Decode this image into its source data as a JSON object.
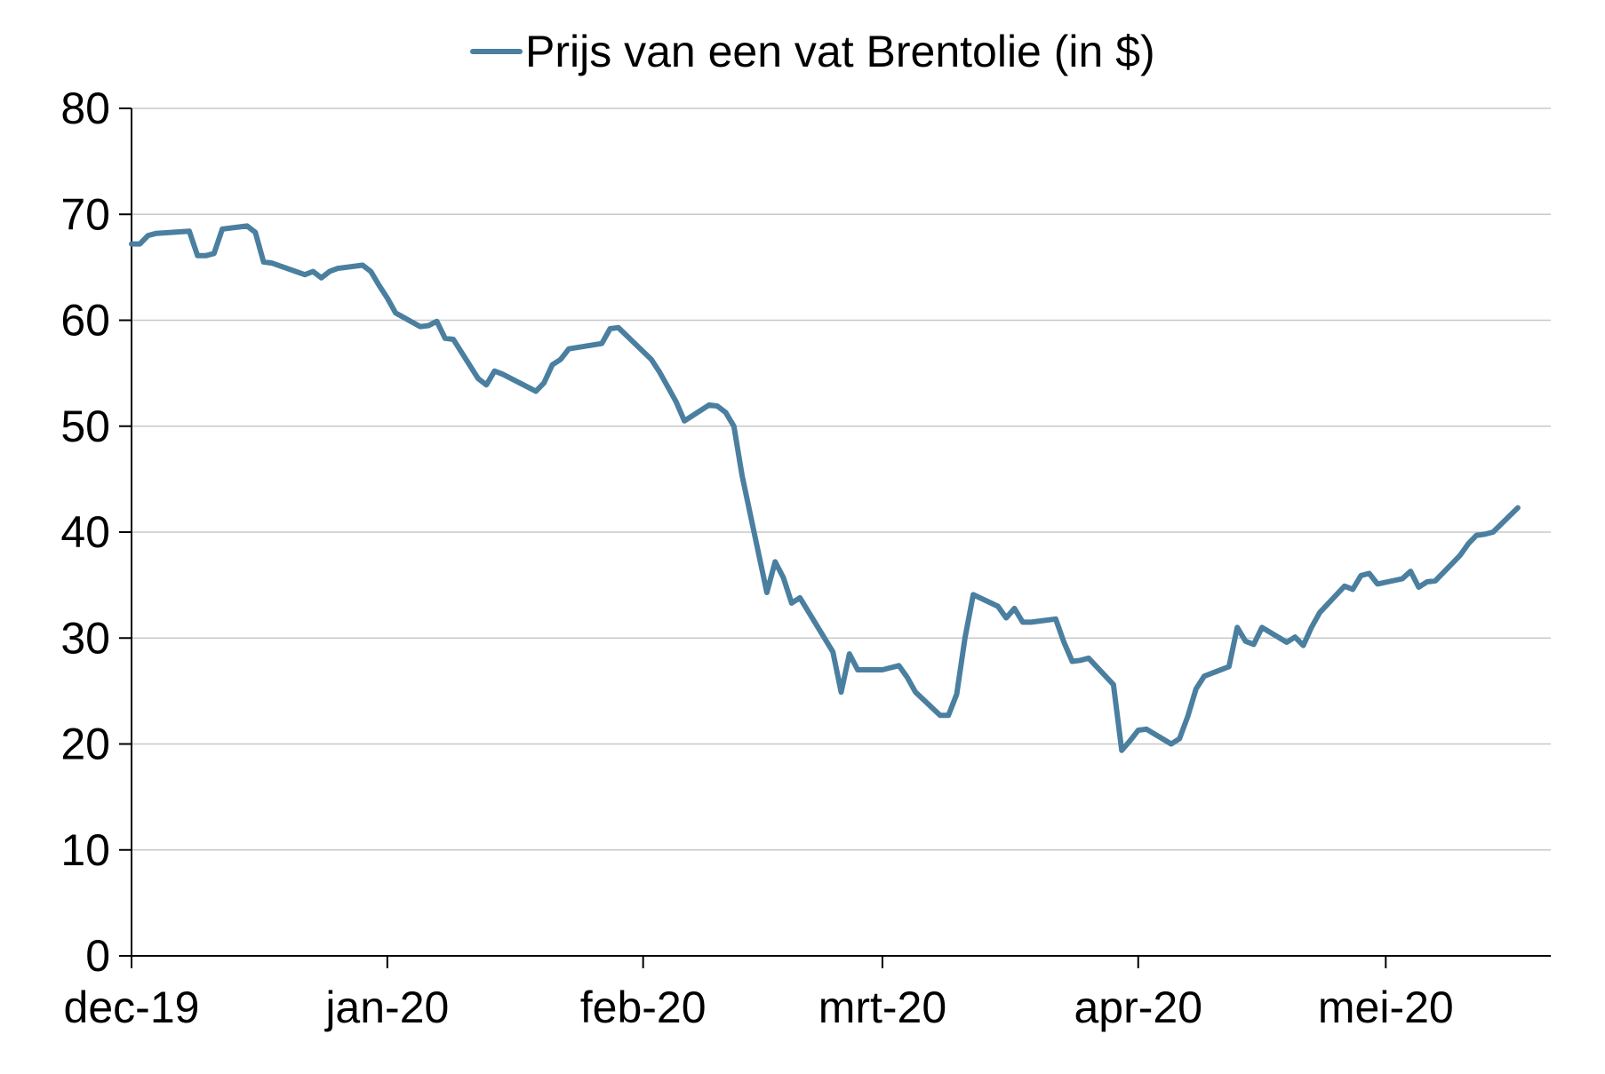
{
  "colors": {
    "series_line": "#4a7fa0",
    "grid": "#c8c8c8",
    "axis": "#000000",
    "text": "#000000",
    "background": "#ffffff"
  },
  "chart_data": {
    "type": "line",
    "title": "",
    "xlabel": "",
    "ylabel": "",
    "legend_position": "top-center",
    "grid": true,
    "ylim": [
      0,
      80
    ],
    "y_ticks": [
      0,
      10,
      20,
      30,
      40,
      50,
      60,
      70,
      80
    ],
    "y_tick_labels": [
      "0",
      "10",
      "20",
      "30",
      "40",
      "50",
      "60",
      "70",
      "80"
    ],
    "xlim": [
      "2019-12-02",
      "2020-05-22"
    ],
    "x_ticks": [
      "2019-12-02",
      "2020-01-02",
      "2020-02-02",
      "2020-03-02",
      "2020-04-02",
      "2020-05-02"
    ],
    "x_tick_labels": [
      "dec-19",
      "jan-20",
      "feb-20",
      "mrt-20",
      "apr-20",
      "mei-20"
    ],
    "series": [
      {
        "name": "Prijs van een vat Brentolie (in $)",
        "color": "#4a7fa0",
        "points": [
          [
            "2019-12-02",
            67.2
          ],
          [
            "2019-12-03",
            67.2
          ],
          [
            "2019-12-04",
            68.0
          ],
          [
            "2019-12-05",
            68.2
          ],
          [
            "2019-12-09",
            68.4
          ],
          [
            "2019-12-10",
            66.1
          ],
          [
            "2019-12-11",
            66.1
          ],
          [
            "2019-12-12",
            66.3
          ],
          [
            "2019-12-13",
            68.6
          ],
          [
            "2019-12-16",
            68.9
          ],
          [
            "2019-12-17",
            68.3
          ],
          [
            "2019-12-18",
            65.5
          ],
          [
            "2019-12-19",
            65.4
          ],
          [
            "2019-12-23",
            64.3
          ],
          [
            "2019-12-24",
            64.6
          ],
          [
            "2019-12-25",
            64.0
          ],
          [
            "2019-12-26",
            64.6
          ],
          [
            "2019-12-27",
            64.9
          ],
          [
            "2019-12-30",
            65.2
          ],
          [
            "2019-12-31",
            64.6
          ],
          [
            "2020-01-01",
            63.3
          ],
          [
            "2020-01-02",
            62.1
          ],
          [
            "2020-01-03",
            60.7
          ],
          [
            "2020-01-06",
            59.4
          ],
          [
            "2020-01-07",
            59.5
          ],
          [
            "2020-01-08",
            59.9
          ],
          [
            "2020-01-09",
            58.3
          ],
          [
            "2020-01-10",
            58.2
          ],
          [
            "2020-01-13",
            54.5
          ],
          [
            "2020-01-14",
            53.9
          ],
          [
            "2020-01-15",
            55.2
          ],
          [
            "2020-01-16",
            54.9
          ],
          [
            "2020-01-20",
            53.3
          ],
          [
            "2020-01-21",
            54.1
          ],
          [
            "2020-01-22",
            55.8
          ],
          [
            "2020-01-23",
            56.3
          ],
          [
            "2020-01-24",
            57.3
          ],
          [
            "2020-01-28",
            57.8
          ],
          [
            "2020-01-29",
            59.2
          ],
          [
            "2020-01-30",
            59.3
          ],
          [
            "2020-02-03",
            56.3
          ],
          [
            "2020-02-04",
            55.1
          ],
          [
            "2020-02-05",
            53.7
          ],
          [
            "2020-02-06",
            52.3
          ],
          [
            "2020-02-07",
            50.5
          ],
          [
            "2020-02-10",
            52.0
          ],
          [
            "2020-02-11",
            51.9
          ],
          [
            "2020-02-12",
            51.3
          ],
          [
            "2020-02-13",
            50.0
          ],
          [
            "2020-02-14",
            45.3
          ],
          [
            "2020-02-17",
            34.3
          ],
          [
            "2020-02-18",
            37.2
          ],
          [
            "2020-02-19",
            35.7
          ],
          [
            "2020-02-20",
            33.3
          ],
          [
            "2020-02-21",
            33.8
          ],
          [
            "2020-02-25",
            28.7
          ],
          [
            "2020-02-26",
            24.9
          ],
          [
            "2020-02-27",
            28.5
          ],
          [
            "2020-02-28",
            27.0
          ],
          [
            "2020-03-02",
            27.0
          ],
          [
            "2020-03-03",
            27.2
          ],
          [
            "2020-03-04",
            27.4
          ],
          [
            "2020-03-05",
            26.3
          ],
          [
            "2020-03-06",
            24.9
          ],
          [
            "2020-03-09",
            22.7
          ],
          [
            "2020-03-10",
            22.7
          ],
          [
            "2020-03-11",
            24.7
          ],
          [
            "2020-03-12",
            30.0
          ],
          [
            "2020-03-13",
            34.1
          ],
          [
            "2020-03-16",
            33.0
          ],
          [
            "2020-03-17",
            31.9
          ],
          [
            "2020-03-18",
            32.8
          ],
          [
            "2020-03-19",
            31.5
          ],
          [
            "2020-03-20",
            31.5
          ],
          [
            "2020-03-23",
            31.8
          ],
          [
            "2020-03-24",
            29.6
          ],
          [
            "2020-03-25",
            27.8
          ],
          [
            "2020-03-26",
            27.9
          ],
          [
            "2020-03-27",
            28.1
          ],
          [
            "2020-03-30",
            25.6
          ],
          [
            "2020-03-31",
            19.4
          ],
          [
            "2020-04-01",
            20.3
          ],
          [
            "2020-04-02",
            21.3
          ],
          [
            "2020-04-03",
            21.4
          ],
          [
            "2020-04-06",
            20.0
          ],
          [
            "2020-04-07",
            20.5
          ],
          [
            "2020-04-08",
            22.6
          ],
          [
            "2020-04-09",
            25.2
          ],
          [
            "2020-04-10",
            26.4
          ],
          [
            "2020-04-13",
            27.3
          ],
          [
            "2020-04-14",
            31.0
          ],
          [
            "2020-04-15",
            29.7
          ],
          [
            "2020-04-16",
            29.4
          ],
          [
            "2020-04-17",
            31.0
          ],
          [
            "2020-04-20",
            29.6
          ],
          [
            "2020-04-21",
            30.1
          ],
          [
            "2020-04-22",
            29.3
          ],
          [
            "2020-04-23",
            31.0
          ],
          [
            "2020-04-24",
            32.4
          ],
          [
            "2020-04-27",
            34.9
          ],
          [
            "2020-04-28",
            34.6
          ],
          [
            "2020-04-29",
            35.9
          ],
          [
            "2020-04-30",
            36.1
          ],
          [
            "2020-05-01",
            35.1
          ],
          [
            "2020-05-04",
            35.6
          ],
          [
            "2020-05-05",
            36.3
          ],
          [
            "2020-05-06",
            34.8
          ],
          [
            "2020-05-07",
            35.3
          ],
          [
            "2020-05-08",
            35.4
          ],
          [
            "2020-05-11",
            37.8
          ],
          [
            "2020-05-12",
            38.9
          ],
          [
            "2020-05-13",
            39.7
          ],
          [
            "2020-05-14",
            39.8
          ],
          [
            "2020-05-15",
            40.0
          ],
          [
            "2020-05-18",
            42.3
          ]
        ]
      }
    ]
  }
}
